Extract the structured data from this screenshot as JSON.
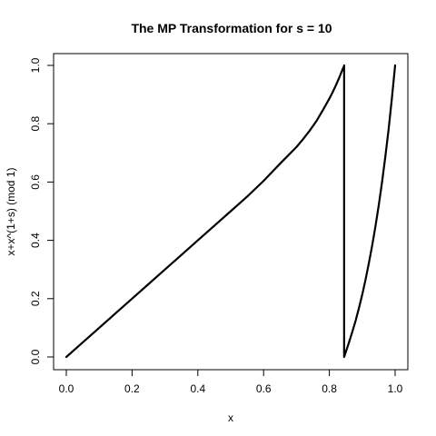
{
  "chart_data": {
    "type": "line",
    "title": "The MP Transformation for s = 10",
    "xlabel": "x",
    "ylabel": "x+x^(1+s) (mod 1)",
    "xlim": [
      0,
      1
    ],
    "ylim": [
      0,
      1
    ],
    "x_ticks": [
      0.0,
      0.2,
      0.4,
      0.6,
      0.8,
      1.0
    ],
    "x_tick_labels": [
      "0.0",
      "0.2",
      "0.4",
      "0.6",
      "0.8",
      "1.0"
    ],
    "y_ticks": [
      0.0,
      0.2,
      0.4,
      0.6,
      0.8,
      1.0
    ],
    "y_tick_labels": [
      "0.0",
      "0.2",
      "0.4",
      "0.6",
      "0.8",
      "1.0"
    ],
    "grid": false,
    "color": "#000000",
    "series": [
      {
        "x": [
          0.0,
          0.05,
          0.1,
          0.15,
          0.2,
          0.25,
          0.3,
          0.35,
          0.4,
          0.45,
          0.5,
          0.55,
          0.6,
          0.65,
          0.7,
          0.72,
          0.74,
          0.76,
          0.78,
          0.8,
          0.81,
          0.82,
          0.83,
          0.84,
          0.845,
          0.8449,
          0.8449,
          0.85,
          0.86,
          0.87,
          0.88,
          0.89,
          0.9,
          0.91,
          0.92,
          0.93,
          0.94,
          0.95,
          0.96,
          0.97,
          0.98,
          0.99,
          1.0
        ],
        "y": [
          0.0,
          0.05,
          0.1,
          0.15,
          0.2,
          0.25,
          0.3,
          0.35,
          0.4,
          0.45,
          0.5,
          0.55,
          0.604,
          0.663,
          0.72,
          0.747,
          0.776,
          0.808,
          0.846,
          0.886,
          0.908,
          0.932,
          0.958,
          0.986,
          0.998,
          1.0,
          0.0,
          0.017,
          0.051,
          0.087,
          0.125,
          0.168,
          0.214,
          0.265,
          0.321,
          0.381,
          0.447,
          0.519,
          0.598,
          0.685,
          0.779,
          0.885,
          1.0
        ]
      }
    ]
  }
}
